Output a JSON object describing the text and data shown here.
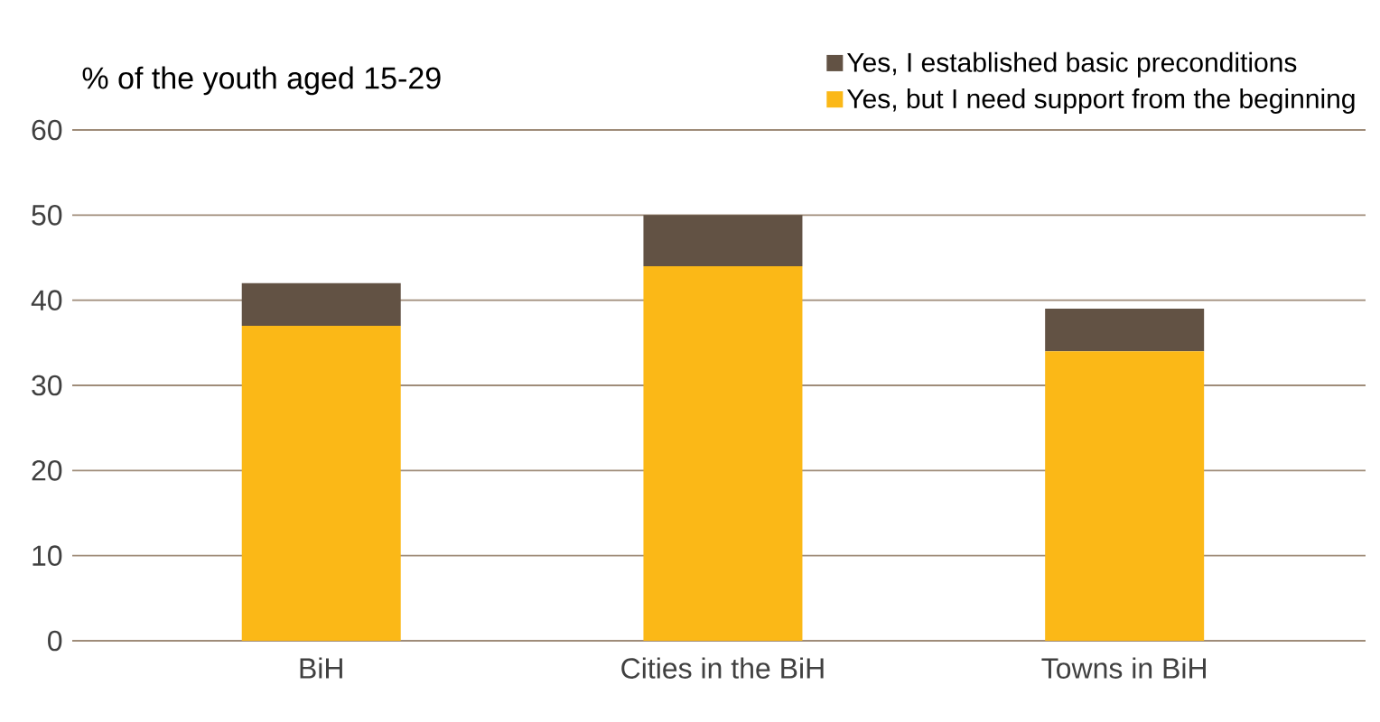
{
  "chart_data": {
    "type": "bar",
    "stacked": true,
    "ylabel": "% of the youth aged 15-29",
    "categories": [
      "BiH",
      "Cities in the BiH",
      "Towns in BiH"
    ],
    "series": [
      {
        "name": "Yes, but I need support from the beginning",
        "color": "#fbb817",
        "values": [
          37,
          44,
          34
        ]
      },
      {
        "name": "Yes, I established basic preconditions",
        "color": "#625244",
        "values": [
          5,
          6,
          5
        ]
      }
    ],
    "ylim": [
      0,
      60
    ],
    "yticks": [
      0,
      10,
      20,
      30,
      40,
      50,
      60
    ],
    "grid": "y",
    "legend": "top right"
  }
}
